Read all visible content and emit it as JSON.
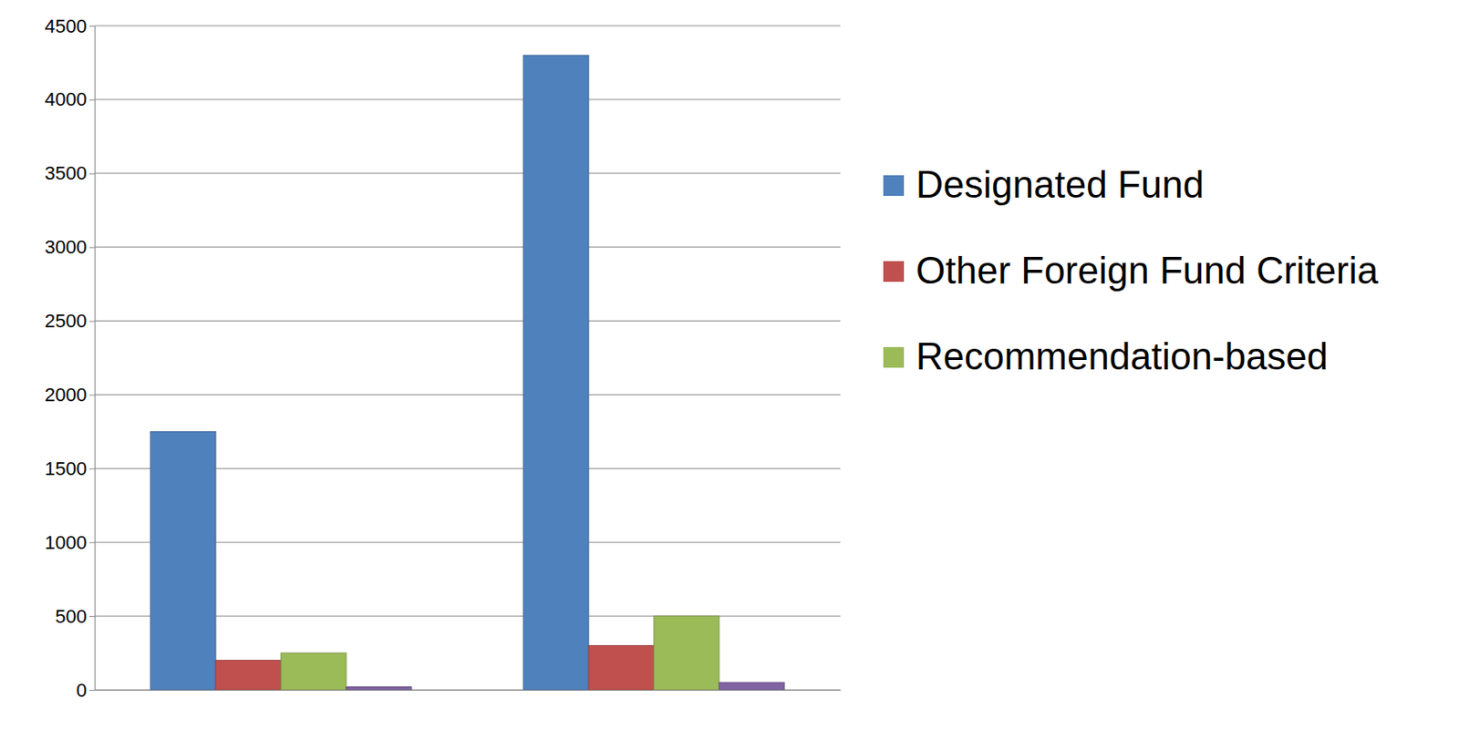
{
  "chart_data": {
    "type": "bar",
    "categories": [
      null,
      null
    ],
    "series": [
      {
        "name": "Designated Fund",
        "color": "#4f81bd",
        "values": [
          1750,
          4300
        ]
      },
      {
        "name": "Other Foreign Fund Criteria",
        "color": "#c0504d",
        "values": [
          200,
          300
        ]
      },
      {
        "name": "Recommendation-based",
        "color": "#9bbb59",
        "values": [
          250,
          500
        ]
      },
      {
        "name": null,
        "color": "#8064a2",
        "values": [
          20,
          50
        ]
      }
    ],
    "ylim": [
      0,
      4500
    ],
    "yticks": [
      0,
      500,
      1000,
      1500,
      2000,
      2500,
      3000,
      3500,
      4000,
      4500
    ],
    "grid": true,
    "legend": "right"
  }
}
